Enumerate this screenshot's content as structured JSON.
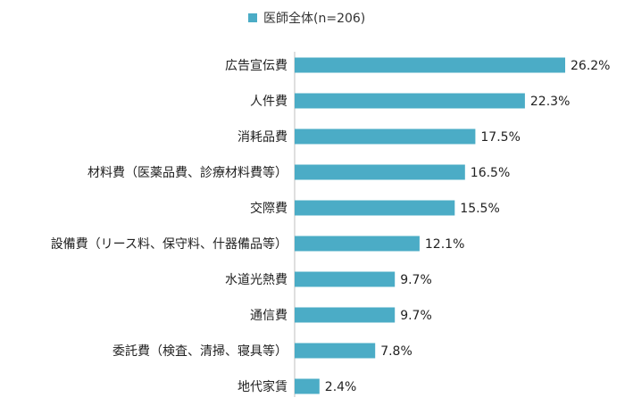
{
  "chart_data": {
    "type": "bar",
    "orientation": "horizontal",
    "categories": [
      "広告宣伝費",
      "人件費",
      "消耗品費",
      "材料費（医薬品費、診療材料費等）",
      "交際費",
      "設備費（リース料、保守料、什器備品等）",
      "水道光熱費",
      "通信費",
      "委託費（検査、清掃、寝具等）",
      "地代家賃"
    ],
    "series": [
      {
        "name": "医師全体(n=206)",
        "values": [
          26.2,
          22.3,
          17.5,
          16.5,
          15.5,
          12.1,
          9.7,
          9.7,
          7.8,
          2.4
        ],
        "labels": [
          "26.2%",
          "22.3%",
          "17.5%",
          "16.5%",
          "15.5%",
          "12.1%",
          "9.7%",
          "9.7%",
          "7.8%",
          "2.4%"
        ]
      }
    ],
    "xlim": [
      0,
      30
    ],
    "grid": false,
    "legend_position": "top",
    "bar_color": "#4bacc6"
  }
}
